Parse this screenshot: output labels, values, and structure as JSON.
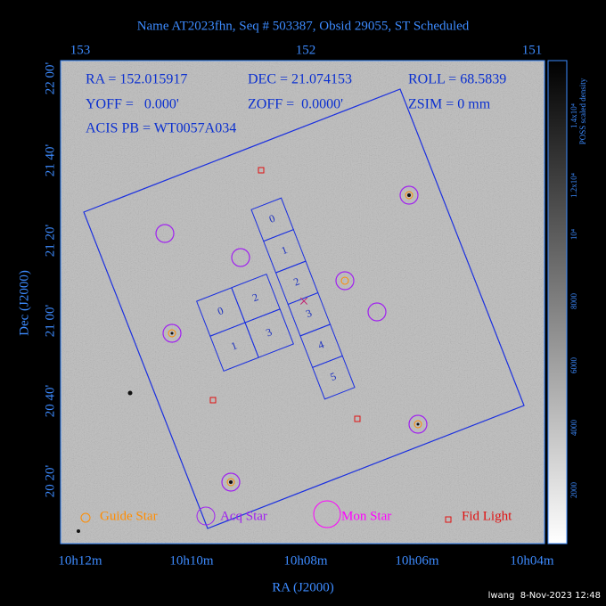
{
  "title": "Name AT2023fhn, Seq # 503387, Obsid 29055, ST Scheduled",
  "top_axis": {
    "labels": [
      "153",
      "152",
      "151"
    ]
  },
  "left_axis": {
    "title": "Dec (J2000)",
    "labels": [
      "22 00'",
      "21 40'",
      "21 20'",
      "21 00'",
      "20 40'",
      "20 20'"
    ]
  },
  "bottom_axis": {
    "title": "RA (J2000)",
    "labels": [
      "10h12m",
      "10h10m",
      "10h08m",
      "10h06m",
      "10h04m"
    ]
  },
  "info": [
    "RA = 152.015917",
    "DEC = 21.074153",
    "ROLL = 68.5839",
    "YOFF =   0.000'",
    "ZOFF =  0.0000'",
    "ZSIM = 0 mm",
    "ACIS PB = WT0057A034"
  ],
  "legend": [
    "Guide Star",
    "Acq Star",
    "Mon Star",
    "Fid Light"
  ],
  "colorbar": {
    "title": "POSS scaled density",
    "labels": [
      "1.4x10⁴",
      "1.2x10⁴",
      "10⁴",
      "8000",
      "6000",
      "4000",
      "2000"
    ]
  },
  "chips": {
    "acis_i": [
      "0",
      "2",
      "1",
      "3"
    ],
    "acis_s": [
      "0",
      "1",
      "2",
      "3",
      "4",
      "5"
    ]
  },
  "footer": "lwang  8-Nov-2023 12:48"
}
